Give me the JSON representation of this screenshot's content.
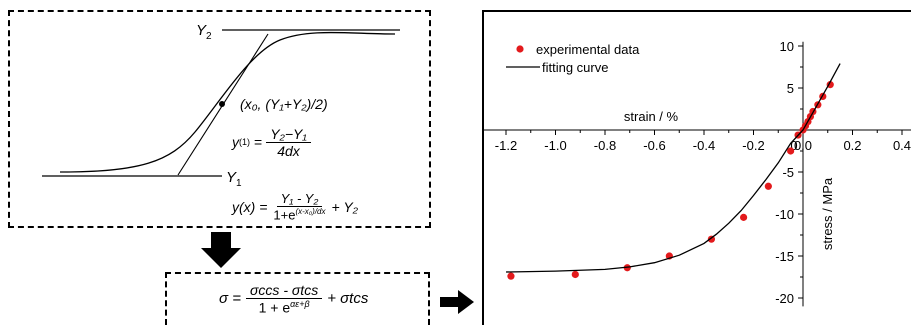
{
  "sigmoid_panel": {
    "y2_label": "Y",
    "y2_sub": "2",
    "y1_label": "Y",
    "y1_sub": "1",
    "point_label": "(x₀, (Y₁+Y₂)/2)",
    "slope_lhs": "y",
    "slope_sup": "(1)",
    "slope_num": "Y₂−Y₁",
    "slope_den": "4dx",
    "fn_lhs": "y(x) =",
    "fn_num": "Y₁ - Y₂",
    "fn_den_base": "1+e",
    "fn_den_exp": "(x-x₀)/dx",
    "fn_tail": "+ Y₂"
  },
  "sigma_panel": {
    "lhs": "σ =",
    "num": "σccs - σtcs",
    "den_base": "1 + e",
    "den_exp": "αε+β",
    "tail": "+ σtcs"
  },
  "chart_data": {
    "type": "scatter",
    "xlabel": "strain / %",
    "ylabel": "stress / MPa",
    "xlim": [
      -1.3,
      0.45
    ],
    "ylim": [
      -21,
      10.5
    ],
    "x_ticks": [
      -1.2,
      -1.0,
      -0.8,
      -0.6,
      -0.4,
      -0.2,
      0.0,
      0.2,
      0.4
    ],
    "x_tick_labels": [
      "-1.2",
      "-1.0",
      "-0.8",
      "-0.6",
      "-0.4",
      "-0.2",
      "0.0",
      "0.2",
      "0.4"
    ],
    "y_ticks": [
      10,
      5,
      0,
      -5,
      -10,
      -15,
      -20
    ],
    "y_tick_labels": [
      "10",
      "5",
      "0",
      "-5",
      "-10",
      "-15",
      "-20"
    ],
    "legend_position": "top-left",
    "series": [
      {
        "name": "experimental data",
        "kind": "scatter",
        "color": "#e31a1c",
        "x": [
          -1.18,
          -0.92,
          -0.71,
          -0.54,
          -0.37,
          -0.24,
          -0.14,
          -0.05,
          -0.02,
          0.0,
          0.01,
          0.02,
          0.03,
          0.04,
          0.06,
          0.08,
          0.11
        ],
        "y": [
          -17.4,
          -17.2,
          -16.4,
          -15.0,
          -13.0,
          -10.4,
          -6.7,
          -2.5,
          -0.6,
          0.0,
          0.5,
          1.0,
          1.6,
          2.2,
          3.0,
          4.0,
          5.4
        ]
      },
      {
        "name": "fitting curve",
        "kind": "line",
        "color": "#000000",
        "x": [
          -1.2,
          -1.0,
          -0.8,
          -0.7,
          -0.6,
          -0.5,
          -0.4,
          -0.35,
          -0.3,
          -0.25,
          -0.2,
          -0.15,
          -0.1,
          -0.05,
          0.0,
          0.05,
          0.1,
          0.15
        ],
        "y": [
          -16.9,
          -16.8,
          -16.6,
          -16.3,
          -15.8,
          -14.9,
          -13.5,
          -12.4,
          -11.1,
          -9.6,
          -7.8,
          -5.9,
          -3.9,
          -1.6,
          0.0,
          2.6,
          5.2,
          7.9
        ]
      }
    ]
  }
}
